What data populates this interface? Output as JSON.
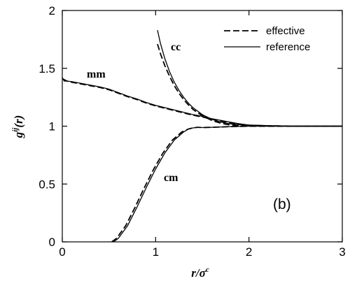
{
  "chart_data": {
    "type": "line",
    "xlabel_main": "r/σ",
    "xlabel_sup": "c",
    "ylabel_main": "g",
    "ylabel_sup": "ij",
    "ylabel_tail": "(r)",
    "xlim": [
      0,
      3
    ],
    "ylim": [
      0,
      2
    ],
    "x_ticks": [
      "0",
      "1",
      "2",
      "3"
    ],
    "y_ticks": [
      "0",
      "0.5",
      "1",
      "1.5",
      "2"
    ],
    "grid": false,
    "legend_position": "top-right",
    "legend": [
      {
        "label": "effective",
        "style": "dashed"
      },
      {
        "label": "reference",
        "style": "solid"
      }
    ],
    "panel_label": "(b)",
    "curve_labels": {
      "mm": "mm",
      "cc": "cc",
      "cm": "cm"
    },
    "series": [
      {
        "curve": "mm",
        "style": "solid",
        "x": [
          0,
          0.02,
          0.05,
          0.1,
          0.2,
          0.3,
          0.4,
          0.5,
          0.6,
          0.7,
          0.8,
          0.9,
          1.0,
          1.1,
          1.2,
          1.3,
          1.4,
          1.5,
          1.6,
          1.7,
          1.8,
          1.9,
          2.0,
          2.2,
          2.5,
          3.0
        ],
        "y": [
          1.42,
          1.39,
          1.39,
          1.385,
          1.37,
          1.355,
          1.34,
          1.32,
          1.29,
          1.26,
          1.235,
          1.205,
          1.18,
          1.16,
          1.14,
          1.12,
          1.1,
          1.085,
          1.065,
          1.05,
          1.035,
          1.02,
          1.01,
          1.005,
          1.0,
          1.0
        ]
      },
      {
        "curve": "mm",
        "style": "dashed",
        "x": [
          0,
          0.05,
          0.1,
          0.2,
          0.3,
          0.4,
          0.5,
          0.6,
          0.7,
          0.8,
          0.9,
          1.0,
          1.1,
          1.2,
          1.3,
          1.4,
          1.5,
          1.6,
          1.7,
          1.8,
          1.9,
          2.0,
          2.2,
          2.5,
          3.0
        ],
        "y": [
          1.41,
          1.39,
          1.38,
          1.365,
          1.35,
          1.335,
          1.315,
          1.285,
          1.255,
          1.23,
          1.2,
          1.175,
          1.155,
          1.135,
          1.115,
          1.095,
          1.08,
          1.06,
          1.045,
          1.03,
          1.018,
          1.008,
          1.003,
          1.0,
          1.0
        ]
      },
      {
        "curve": "cc",
        "style": "solid",
        "x": [
          1.02,
          1.05,
          1.1,
          1.15,
          1.2,
          1.25,
          1.3,
          1.35,
          1.4,
          1.5,
          1.6,
          1.7,
          1.8,
          1.9,
          2.0,
          2.2,
          2.5,
          3.0
        ],
        "y": [
          1.83,
          1.72,
          1.58,
          1.47,
          1.38,
          1.31,
          1.25,
          1.2,
          1.16,
          1.1,
          1.06,
          1.035,
          1.02,
          1.012,
          1.005,
          1.0,
          1.0,
          1.0
        ]
      },
      {
        "curve": "cc",
        "style": "dashed",
        "x": [
          1.02,
          1.05,
          1.1,
          1.15,
          1.2,
          1.25,
          1.3,
          1.35,
          1.4,
          1.5,
          1.6,
          1.7,
          1.8,
          1.9,
          2.0,
          2.2,
          2.5,
          3.0
        ],
        "y": [
          1.71,
          1.63,
          1.52,
          1.43,
          1.35,
          1.285,
          1.23,
          1.185,
          1.145,
          1.09,
          1.05,
          1.025,
          1.01,
          1.005,
          1.0,
          1.0,
          1.0,
          1.0
        ]
      },
      {
        "curve": "cm",
        "style": "solid",
        "x": [
          0.55,
          0.6,
          0.7,
          0.8,
          0.9,
          1.0,
          1.1,
          1.2,
          1.3,
          1.35,
          1.4,
          1.45,
          1.5,
          1.6,
          1.8,
          2.0,
          2.5,
          3.0
        ],
        "y": [
          0.0,
          0.03,
          0.14,
          0.3,
          0.47,
          0.63,
          0.77,
          0.88,
          0.95,
          0.975,
          0.985,
          0.99,
          0.988,
          0.99,
          0.996,
          1.0,
          1.0,
          1.0
        ]
      },
      {
        "curve": "cm",
        "style": "dashed",
        "x": [
          0.53,
          0.58,
          0.68,
          0.78,
          0.88,
          0.98,
          1.08,
          1.18,
          1.28,
          1.35,
          1.4,
          1.45,
          1.5,
          1.6,
          1.8,
          2.0,
          2.5,
          3.0
        ],
        "y": [
          0.0,
          0.03,
          0.14,
          0.3,
          0.47,
          0.63,
          0.77,
          0.88,
          0.95,
          0.975,
          0.985,
          0.99,
          0.988,
          0.99,
          0.996,
          1.0,
          1.0,
          1.0
        ]
      }
    ]
  }
}
